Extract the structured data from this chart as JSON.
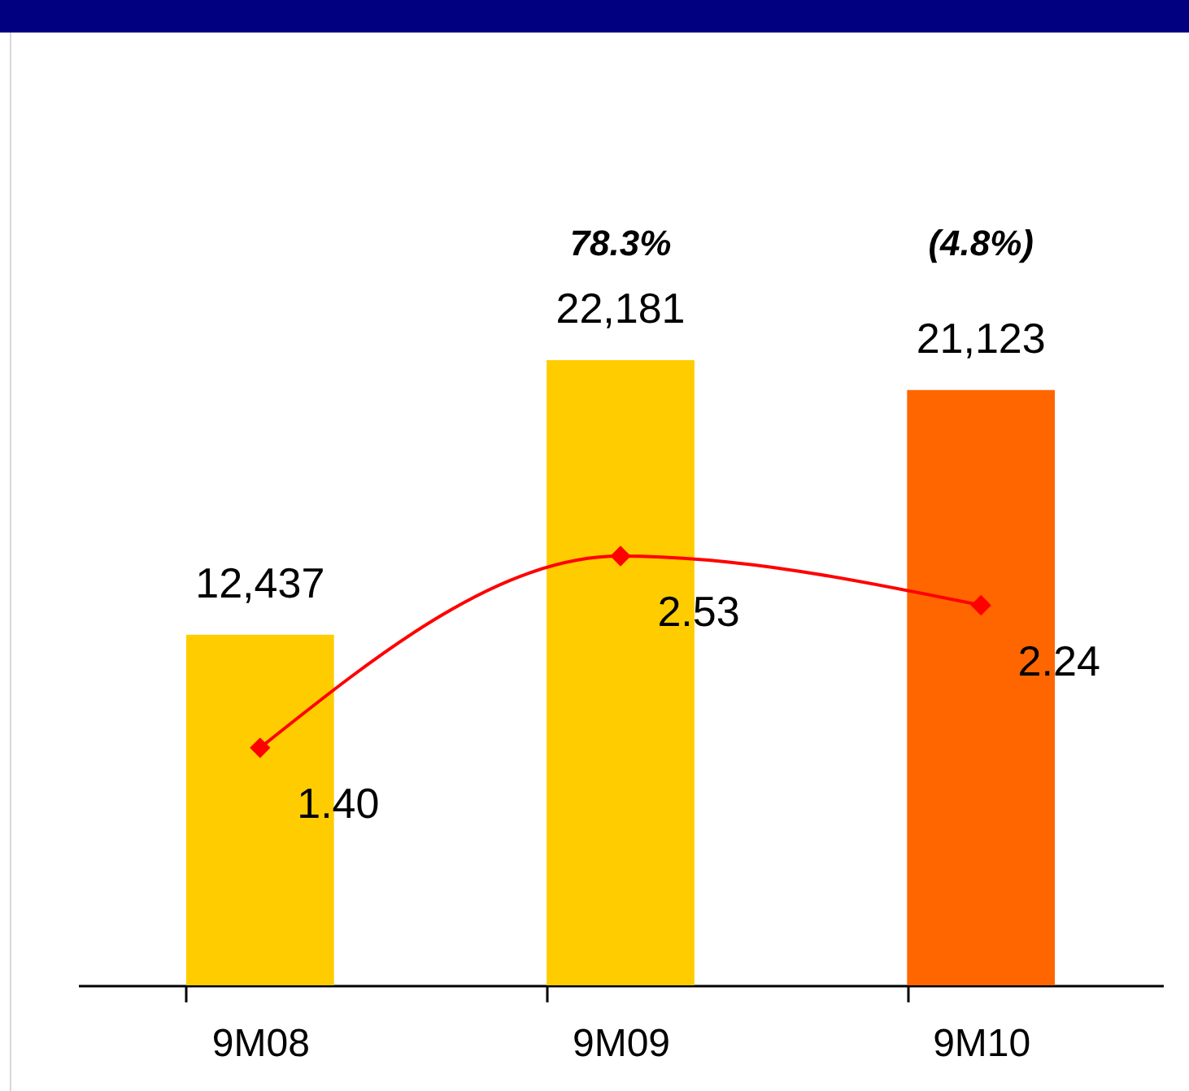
{
  "chart_data": {
    "type": "bar",
    "categories": [
      "9M08",
      "9M09",
      "9M10"
    ],
    "series": [
      {
        "colors": [
          "#ffcc00",
          "#ffcc00",
          "#ff6600"
        ],
        "values": [
          12437,
          22181,
          21123
        ],
        "value_labels": [
          "12,437",
          "22,181",
          "21,123"
        ]
      },
      {
        "type": "line",
        "axis": "y2",
        "color": "#ff0000",
        "values": [
          1.4,
          2.53,
          2.24
        ],
        "value_labels": [
          "1.40",
          "2.53",
          "2.24"
        ]
      }
    ],
    "tick_labels": "x",
    "marker": "diamond",
    "grid": false,
    "annotations": [
      "78.3%",
      "(4.8%)"
    ]
  }
}
